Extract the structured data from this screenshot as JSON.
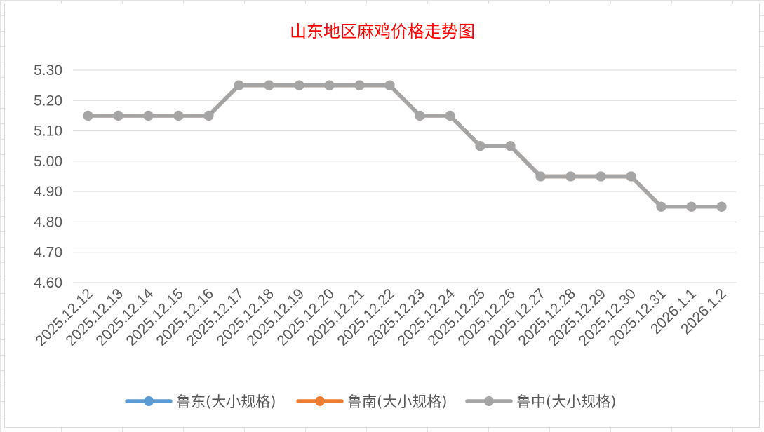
{
  "chart_data": {
    "type": "line",
    "title": "山东地区麻鸡价格走势图",
    "xlabel": "",
    "ylabel": "",
    "categories": [
      "2025.12.12",
      "2025.12.13",
      "2025.12.14",
      "2025.12.15",
      "2025.12.16",
      "2025.12.17",
      "2025.12.18",
      "2025.12.19",
      "2025.12.20",
      "2025.12.21",
      "2025.12.22",
      "2025.12.23",
      "2025.12.24",
      "2025.12.25",
      "2025.12.26",
      "2025.12.27",
      "2025.12.28",
      "2025.12.29",
      "2025.12.30",
      "2025.12.31",
      "2026.1.1",
      "2026.1.2"
    ],
    "yticks": [
      "4.60",
      "4.70",
      "4.80",
      "4.90",
      "5.00",
      "5.10",
      "5.20",
      "5.30"
    ],
    "ylim": [
      4.6,
      5.3
    ],
    "grid": true,
    "legend_position": "bottom",
    "series": [
      {
        "name": "鲁东(大小规格)",
        "color": "#5b9bd5",
        "values": [
          5.15,
          5.15,
          5.15,
          5.15,
          5.15,
          5.25,
          5.25,
          5.25,
          5.25,
          5.25,
          5.25,
          5.15,
          5.15,
          5.05,
          5.05,
          4.95,
          4.95,
          4.95,
          4.95,
          4.85,
          4.85,
          4.85
        ]
      },
      {
        "name": "鲁南(大小规格)",
        "color": "#ed7d31",
        "values": [
          5.15,
          5.15,
          5.15,
          5.15,
          5.15,
          5.25,
          5.25,
          5.25,
          5.25,
          5.25,
          5.25,
          5.15,
          5.15,
          5.05,
          5.05,
          4.95,
          4.95,
          4.95,
          4.95,
          4.85,
          4.85,
          4.85
        ]
      },
      {
        "name": "鲁中(大小规格)",
        "color": "#a5a5a5",
        "values": [
          5.15,
          5.15,
          5.15,
          5.15,
          5.15,
          5.25,
          5.25,
          5.25,
          5.25,
          5.25,
          5.25,
          5.15,
          5.15,
          5.05,
          5.05,
          4.95,
          4.95,
          4.95,
          4.95,
          4.85,
          4.85,
          4.85
        ]
      }
    ]
  }
}
